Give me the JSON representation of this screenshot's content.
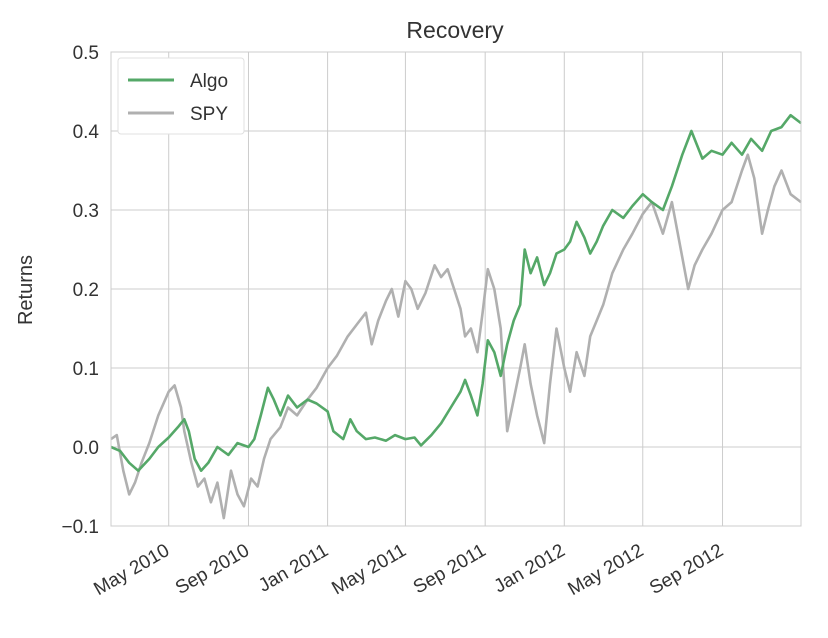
{
  "chart_data": {
    "type": "line",
    "title": "Recovery",
    "xlabel": "",
    "ylabel": "Returns",
    "x_ticks": [
      "May 2010",
      "Sep 2010",
      "Jan 2011",
      "May 2011",
      "Sep 2011",
      "Jan 2012",
      "May 2012",
      "Sep 2012"
    ],
    "x_range": [
      "2010-02-01",
      "2012-12-31"
    ],
    "y_ticks": [
      "0.5",
      "0.4",
      "0.3",
      "0.2",
      "0.1",
      "0.0",
      "−0.1"
    ],
    "ylim": [
      -0.1,
      0.5
    ],
    "grid": true,
    "legend_position": "top-left",
    "series": [
      {
        "name": "Algo",
        "color": "#55a868",
        "points": [
          [
            "2010-02-01",
            0.0
          ],
          [
            "2010-02-15",
            -0.005
          ],
          [
            "2010-03-01",
            -0.02
          ],
          [
            "2010-03-15",
            -0.03
          ],
          [
            "2010-04-01",
            -0.015
          ],
          [
            "2010-04-15",
            0.0
          ],
          [
            "2010-05-01",
            0.012
          ],
          [
            "2010-05-15",
            0.025
          ],
          [
            "2010-05-25",
            0.035
          ],
          [
            "2010-06-01",
            0.02
          ],
          [
            "2010-06-10",
            -0.015
          ],
          [
            "2010-06-20",
            -0.03
          ],
          [
            "2010-07-01",
            -0.02
          ],
          [
            "2010-07-15",
            0.0
          ],
          [
            "2010-08-01",
            -0.01
          ],
          [
            "2010-08-15",
            0.005
          ],
          [
            "2010-09-01",
            0.0
          ],
          [
            "2010-09-10",
            0.01
          ],
          [
            "2010-09-20",
            0.04
          ],
          [
            "2010-10-01",
            0.075
          ],
          [
            "2010-10-10",
            0.06
          ],
          [
            "2010-10-20",
            0.04
          ],
          [
            "2010-11-01",
            0.065
          ],
          [
            "2010-11-15",
            0.05
          ],
          [
            "2010-12-01",
            0.06
          ],
          [
            "2010-12-15",
            0.055
          ],
          [
            "2011-01-01",
            0.045
          ],
          [
            "2011-01-10",
            0.02
          ],
          [
            "2011-01-25",
            0.01
          ],
          [
            "2011-02-05",
            0.035
          ],
          [
            "2011-02-15",
            0.02
          ],
          [
            "2011-03-01",
            0.01
          ],
          [
            "2011-03-15",
            0.012
          ],
          [
            "2011-04-01",
            0.008
          ],
          [
            "2011-04-15",
            0.015
          ],
          [
            "2011-05-01",
            0.01
          ],
          [
            "2011-05-15",
            0.012
          ],
          [
            "2011-05-25",
            0.002
          ],
          [
            "2011-06-10",
            0.015
          ],
          [
            "2011-06-25",
            0.03
          ],
          [
            "2011-07-10",
            0.05
          ],
          [
            "2011-07-25",
            0.07
          ],
          [
            "2011-08-01",
            0.085
          ],
          [
            "2011-08-10",
            0.065
          ],
          [
            "2011-08-20",
            0.04
          ],
          [
            "2011-08-28",
            0.08
          ],
          [
            "2011-09-05",
            0.135
          ],
          [
            "2011-09-15",
            0.12
          ],
          [
            "2011-09-25",
            0.09
          ],
          [
            "2011-10-05",
            0.13
          ],
          [
            "2011-10-15",
            0.16
          ],
          [
            "2011-10-25",
            0.18
          ],
          [
            "2011-11-01",
            0.25
          ],
          [
            "2011-11-10",
            0.22
          ],
          [
            "2011-11-20",
            0.24
          ],
          [
            "2011-12-01",
            0.205
          ],
          [
            "2011-12-10",
            0.22
          ],
          [
            "2011-12-20",
            0.245
          ],
          [
            "2012-01-01",
            0.25
          ],
          [
            "2012-01-10",
            0.26
          ],
          [
            "2012-01-20",
            0.285
          ],
          [
            "2012-02-01",
            0.265
          ],
          [
            "2012-02-10",
            0.245
          ],
          [
            "2012-02-20",
            0.26
          ],
          [
            "2012-03-01",
            0.28
          ],
          [
            "2012-03-15",
            0.3
          ],
          [
            "2012-04-01",
            0.29
          ],
          [
            "2012-04-15",
            0.305
          ],
          [
            "2012-05-01",
            0.32
          ],
          [
            "2012-05-15",
            0.31
          ],
          [
            "2012-06-01",
            0.3
          ],
          [
            "2012-06-15",
            0.33
          ],
          [
            "2012-07-01",
            0.37
          ],
          [
            "2012-07-15",
            0.4
          ],
          [
            "2012-08-01",
            0.365
          ],
          [
            "2012-08-15",
            0.375
          ],
          [
            "2012-09-01",
            0.37
          ],
          [
            "2012-09-15",
            0.385
          ],
          [
            "2012-10-01",
            0.37
          ],
          [
            "2012-10-15",
            0.39
          ],
          [
            "2012-11-01",
            0.375
          ],
          [
            "2012-11-15",
            0.4
          ],
          [
            "2012-12-01",
            0.405
          ],
          [
            "2012-12-15",
            0.42
          ],
          [
            "2012-12-31",
            0.41
          ]
        ]
      },
      {
        "name": "SPY",
        "color": "#b0b0b0",
        "points": [
          [
            "2010-02-01",
            0.01
          ],
          [
            "2010-02-10",
            0.015
          ],
          [
            "2010-02-20",
            -0.03
          ],
          [
            "2010-03-01",
            -0.06
          ],
          [
            "2010-03-10",
            -0.045
          ],
          [
            "2010-03-20",
            -0.02
          ],
          [
            "2010-04-01",
            0.005
          ],
          [
            "2010-04-15",
            0.04
          ],
          [
            "2010-05-01",
            0.07
          ],
          [
            "2010-05-10",
            0.078
          ],
          [
            "2010-05-20",
            0.05
          ],
          [
            "2010-05-25",
            0.02
          ],
          [
            "2010-06-05",
            -0.02
          ],
          [
            "2010-06-15",
            -0.05
          ],
          [
            "2010-06-25",
            -0.04
          ],
          [
            "2010-07-05",
            -0.07
          ],
          [
            "2010-07-15",
            -0.045
          ],
          [
            "2010-07-25",
            -0.09
          ],
          [
            "2010-08-05",
            -0.03
          ],
          [
            "2010-08-15",
            -0.06
          ],
          [
            "2010-08-25",
            -0.075
          ],
          [
            "2010-09-05",
            -0.04
          ],
          [
            "2010-09-15",
            -0.05
          ],
          [
            "2010-09-25",
            -0.015
          ],
          [
            "2010-10-05",
            0.01
          ],
          [
            "2010-10-20",
            0.025
          ],
          [
            "2010-11-01",
            0.05
          ],
          [
            "2010-11-15",
            0.04
          ],
          [
            "2010-12-01",
            0.06
          ],
          [
            "2010-12-15",
            0.075
          ],
          [
            "2011-01-01",
            0.1
          ],
          [
            "2011-01-15",
            0.115
          ],
          [
            "2011-02-01",
            0.14
          ],
          [
            "2011-02-15",
            0.155
          ],
          [
            "2011-03-01",
            0.17
          ],
          [
            "2011-03-10",
            0.13
          ],
          [
            "2011-03-20",
            0.16
          ],
          [
            "2011-04-01",
            0.185
          ],
          [
            "2011-04-10",
            0.2
          ],
          [
            "2011-04-20",
            0.165
          ],
          [
            "2011-05-01",
            0.21
          ],
          [
            "2011-05-10",
            0.2
          ],
          [
            "2011-05-20",
            0.175
          ],
          [
            "2011-06-01",
            0.195
          ],
          [
            "2011-06-15",
            0.23
          ],
          [
            "2011-06-25",
            0.215
          ],
          [
            "2011-07-05",
            0.225
          ],
          [
            "2011-07-15",
            0.2
          ],
          [
            "2011-07-25",
            0.175
          ],
          [
            "2011-08-01",
            0.14
          ],
          [
            "2011-08-10",
            0.15
          ],
          [
            "2011-08-20",
            0.12
          ],
          [
            "2011-08-28",
            0.17
          ],
          [
            "2011-09-05",
            0.225
          ],
          [
            "2011-09-15",
            0.2
          ],
          [
            "2011-09-25",
            0.15
          ],
          [
            "2011-10-05",
            0.02
          ],
          [
            "2011-10-15",
            0.06
          ],
          [
            "2011-10-25",
            0.1
          ],
          [
            "2011-11-01",
            0.13
          ],
          [
            "2011-11-10",
            0.08
          ],
          [
            "2011-11-20",
            0.04
          ],
          [
            "2011-12-01",
            0.005
          ],
          [
            "2011-12-10",
            0.08
          ],
          [
            "2011-12-20",
            0.15
          ],
          [
            "2012-01-01",
            0.1
          ],
          [
            "2012-01-10",
            0.07
          ],
          [
            "2012-01-20",
            0.12
          ],
          [
            "2012-02-01",
            0.09
          ],
          [
            "2012-02-10",
            0.14
          ],
          [
            "2012-02-20",
            0.16
          ],
          [
            "2012-03-01",
            0.18
          ],
          [
            "2012-03-15",
            0.22
          ],
          [
            "2012-04-01",
            0.25
          ],
          [
            "2012-04-15",
            0.27
          ],
          [
            "2012-05-01",
            0.295
          ],
          [
            "2012-05-15",
            0.31
          ],
          [
            "2012-06-01",
            0.27
          ],
          [
            "2012-06-15",
            0.31
          ],
          [
            "2012-07-01",
            0.24
          ],
          [
            "2012-07-10",
            0.2
          ],
          [
            "2012-07-20",
            0.23
          ],
          [
            "2012-08-01",
            0.25
          ],
          [
            "2012-08-15",
            0.27
          ],
          [
            "2012-09-01",
            0.3
          ],
          [
            "2012-09-15",
            0.31
          ],
          [
            "2012-10-01",
            0.35
          ],
          [
            "2012-10-10",
            0.37
          ],
          [
            "2012-10-20",
            0.34
          ],
          [
            "2012-11-01",
            0.27
          ],
          [
            "2012-11-10",
            0.3
          ],
          [
            "2012-11-20",
            0.33
          ],
          [
            "2012-12-01",
            0.35
          ],
          [
            "2012-12-15",
            0.32
          ],
          [
            "2012-12-31",
            0.31
          ]
        ]
      }
    ]
  }
}
